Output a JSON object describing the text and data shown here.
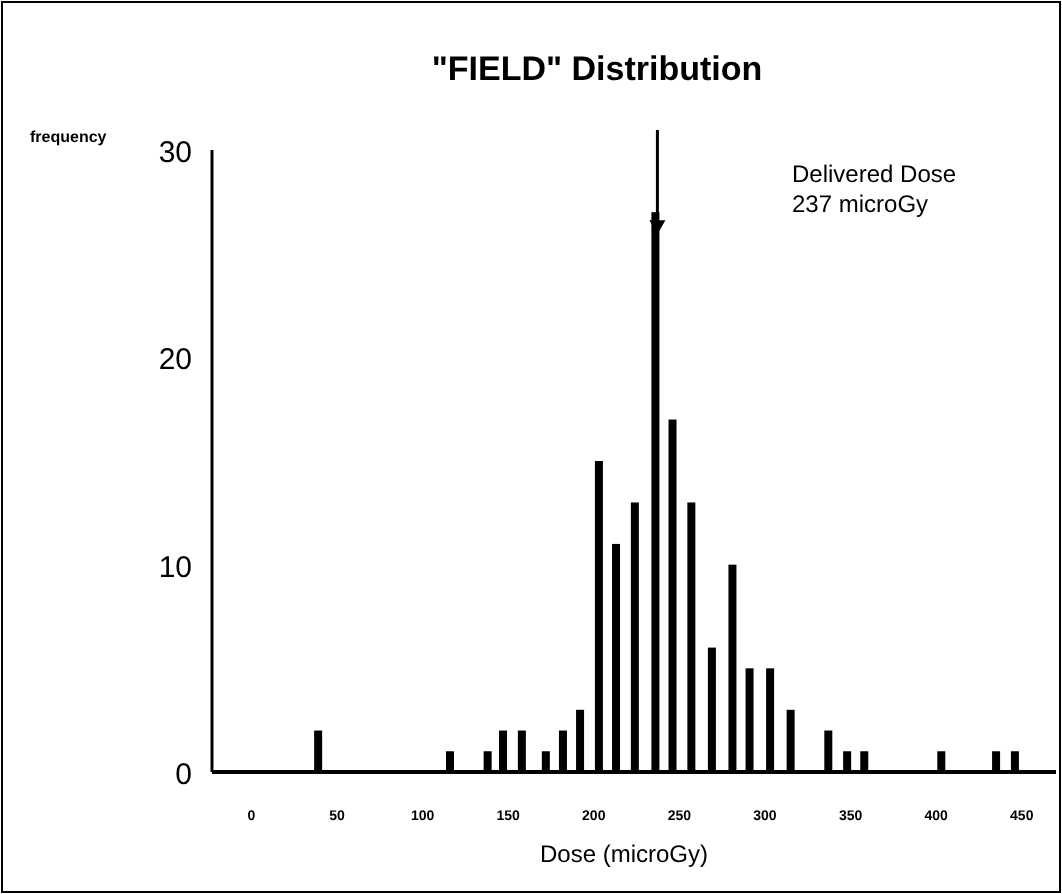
{
  "chart_data": {
    "type": "bar",
    "title": "\"FIELD\" Distribution",
    "xlabel": "Dose (microGy)",
    "ylabel": "frequency",
    "x": [
      39,
      116,
      138,
      147,
      158,
      172,
      182,
      192,
      203,
      213,
      224,
      236,
      246,
      257,
      269,
      281,
      291,
      303,
      315,
      337,
      348,
      358,
      403,
      435,
      446
    ],
    "values": [
      2,
      1,
      1,
      2,
      2,
      1,
      2,
      3,
      15,
      11,
      13,
      27,
      17,
      13,
      6,
      10,
      5,
      5,
      3,
      2,
      1,
      1,
      1,
      1,
      1
    ],
    "color": "#000000",
    "xlim": [
      -23,
      470
    ],
    "xticks": [
      0,
      50,
      100,
      150,
      200,
      250,
      300,
      350,
      400,
      450
    ],
    "ylim": [
      0,
      30
    ],
    "yticks": [
      0,
      10,
      20,
      30
    ],
    "annotations": [
      "Delivered Dose\n237 microGy"
    ]
  }
}
